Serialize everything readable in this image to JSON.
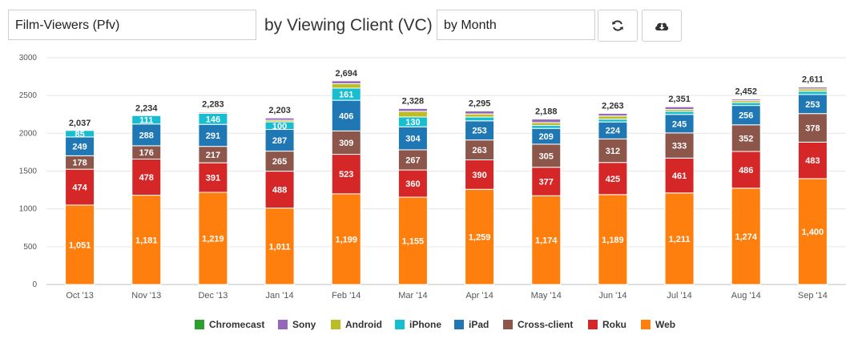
{
  "toolbar": {
    "metric_value": "Film-Viewers (Pfv)",
    "by_label": "by Viewing Client (VC)",
    "period_value": "by Month",
    "refresh_icon": "refresh-icon",
    "download_icon": "cloud-download-icon"
  },
  "colors": {
    "Chromecast": "#2ca02c",
    "Sony": "#9467bd",
    "Android": "#bcbd22",
    "iPhone": "#17becf",
    "iPad": "#1f77b4",
    "Cross-client": "#8c564b",
    "Roku": "#d62728",
    "Web": "#ff7f0e"
  },
  "chart_data": {
    "type": "bar",
    "stacked": true,
    "categories": [
      "Oct '13",
      "Nov '13",
      "Dec '13",
      "Jan '14",
      "Feb '14",
      "Mar '14",
      "Apr '14",
      "May '14",
      "Jun '14",
      "Jul '14",
      "Aug '14",
      "Sep '14"
    ],
    "totals": [
      "2,037",
      "2,234",
      "2,283",
      "2,203",
      "2,694",
      "2,328",
      "2,295",
      "2,188",
      "2,263",
      "2,351",
      "2,452",
      "2,611"
    ],
    "series": [
      {
        "name": "Web",
        "values": [
          1051,
          1181,
          1219,
          1011,
          1199,
          1155,
          1259,
          1174,
          1189,
          1211,
          1274,
          1400
        ],
        "labels": [
          "1,051",
          "1,181",
          "1,219",
          "1,011",
          "1,199",
          "1,155",
          "1,259",
          "1,174",
          "1,189",
          "1,211",
          "1,274",
          "1,400"
        ]
      },
      {
        "name": "Roku",
        "values": [
          474,
          478,
          391,
          488,
          523,
          360,
          390,
          377,
          425,
          461,
          486,
          483
        ],
        "labels": [
          "474",
          "478",
          "391",
          "488",
          "523",
          "360",
          "390",
          "377",
          "425",
          "461",
          "486",
          "483"
        ]
      },
      {
        "name": "Cross-client",
        "values": [
          178,
          176,
          217,
          265,
          309,
          267,
          263,
          305,
          312,
          333,
          352,
          378
        ],
        "labels": [
          "178",
          "176",
          "217",
          "265",
          "309",
          "267",
          "263",
          "305",
          "312",
          "333",
          "352",
          "378"
        ]
      },
      {
        "name": "iPad",
        "values": [
          249,
          288,
          291,
          287,
          406,
          304,
          253,
          209,
          224,
          245,
          256,
          253
        ],
        "labels": [
          "249",
          "288",
          "291",
          "287",
          "406",
          "304",
          "253",
          "209",
          "224",
          "245",
          "256",
          "253"
        ]
      },
      {
        "name": "iPhone",
        "values": [
          85,
          111,
          146,
          100,
          161,
          130,
          50,
          39,
          37,
          40,
          38,
          43
        ],
        "labels": [
          "85",
          "111",
          "146",
          "100",
          "161",
          "130",
          "",
          "",
          "",
          "",
          "",
          ""
        ]
      },
      {
        "name": "Android",
        "values": [
          0,
          0,
          5,
          22,
          58,
          75,
          41,
          38,
          42,
          26,
          26,
          30
        ],
        "labels": [
          "",
          "",
          "",
          "",
          "",
          "",
          "",
          "",
          "",
          "",
          "",
          ""
        ]
      },
      {
        "name": "Sony",
        "values": [
          0,
          0,
          14,
          30,
          38,
          37,
          39,
          46,
          34,
          35,
          20,
          24
        ],
        "labels": [
          "",
          "",
          "",
          "",
          "",
          "",
          "",
          "",
          "",
          "",
          "",
          ""
        ]
      },
      {
        "name": "Chromecast",
        "values": [
          0,
          0,
          0,
          0,
          0,
          0,
          0,
          0,
          0,
          0,
          0,
          0
        ],
        "labels": [
          "",
          "",
          "",
          "",
          "",
          "",
          "",
          "",
          "",
          "",
          "",
          ""
        ]
      }
    ],
    "xlabel": "",
    "ylabel": "",
    "ylim": [
      0,
      3000
    ],
    "yticks": [
      0,
      500,
      1000,
      1500,
      2000,
      2500,
      3000
    ],
    "grid": true,
    "legend_position": "bottom",
    "legend": [
      "Chromecast",
      "Sony",
      "Android",
      "iPhone",
      "iPad",
      "Cross-client",
      "Roku",
      "Web"
    ]
  }
}
